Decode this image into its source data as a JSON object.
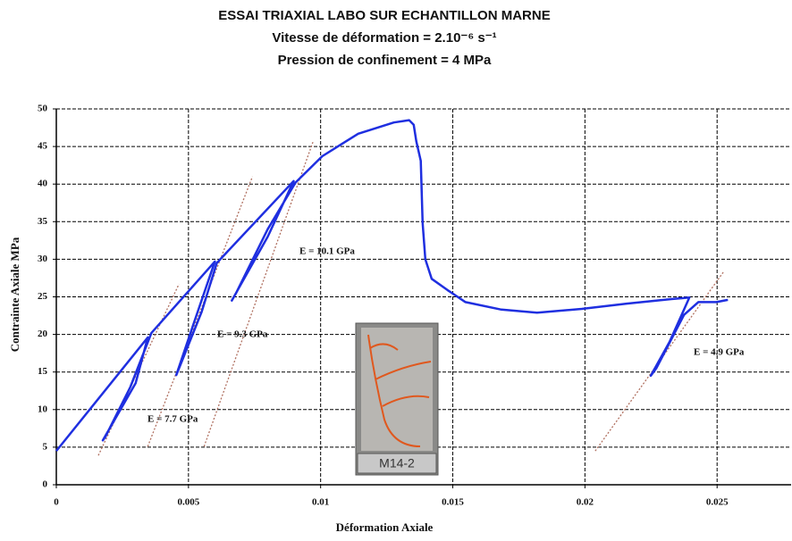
{
  "chart_data": {
    "type": "line",
    "title": "ESSAI TRIAXIAL LABO SUR ECHANTILLON MARNE",
    "subtitle": [
      "Vitesse de déformation = 2.10⁻⁶ s⁻¹",
      "Pression de confinement = 4 MPa"
    ],
    "x_label": "Déformation Axiale",
    "y_label": "Contrainte Axiale MPa",
    "xlim": [
      0,
      0.0278
    ],
    "ylim": [
      0,
      50
    ],
    "xticks": [
      0,
      0.005,
      0.01,
      0.015,
      0.02,
      0.025
    ],
    "yticks": [
      0,
      5,
      10,
      15,
      20,
      25,
      30,
      35,
      40,
      45,
      50
    ],
    "grid": true,
    "series": [
      {
        "color": "#1f2fe0",
        "x": [
          0,
          0.00346,
          0.003,
          0.00176,
          0.00186,
          0.0028,
          0.0036,
          0.006,
          0.0052,
          0.00454,
          0.0047,
          0.0055,
          0.00607,
          0.00898,
          0.008,
          0.00664,
          0.0068,
          0.008,
          0.00905,
          0.01006,
          0.01142,
          0.01277,
          0.01335,
          0.01352,
          0.01362,
          0.01379,
          0.01386,
          0.01396,
          0.0142,
          0.0148,
          0.01548,
          0.01684,
          0.01819,
          0.01988,
          0.02158,
          0.02327,
          0.02395,
          0.0232,
          0.02249,
          0.0227,
          0.02375,
          0.02429,
          0.02497,
          0.02541
        ],
        "y": [
          4.5,
          19.6,
          13.5,
          5.9,
          6.4,
          13,
          20.2,
          29.7,
          21.5,
          14.6,
          16,
          23,
          29.5,
          40.4,
          33,
          24.5,
          25.5,
          34,
          40.2,
          43.7,
          46.7,
          48.2,
          48.5,
          47.9,
          45.7,
          43.1,
          34.8,
          30,
          27.4,
          25.9,
          24.3,
          23.3,
          22.9,
          23.4,
          24.1,
          24.7,
          24.9,
          19,
          14.5,
          15.5,
          22.6,
          24.3,
          24.3,
          24.6
        ]
      }
    ],
    "reference_lines": [
      {
        "color": "#b07060",
        "x": [
          0.00159,
          0.00464
        ],
        "y": [
          3.9,
          26.7
        ]
      },
      {
        "color": "#b07060",
        "x": [
          0.00346,
          0.00742
        ],
        "y": [
          5.1,
          41
        ]
      },
      {
        "color": "#b07060",
        "x": [
          0.00559,
          0.00972
        ],
        "y": [
          5.1,
          45.7
        ]
      },
      {
        "color": "#b07060",
        "x": [
          0.02039,
          0.02524
        ],
        "y": [
          4.5,
          28.3
        ]
      }
    ],
    "annotations": [
      "E = 7.7 GPa",
      "E = 9.3 GPa",
      "E = 10.1 GPa",
      "E = 4.9 GPa"
    ],
    "photo_label": "M14-2"
  }
}
